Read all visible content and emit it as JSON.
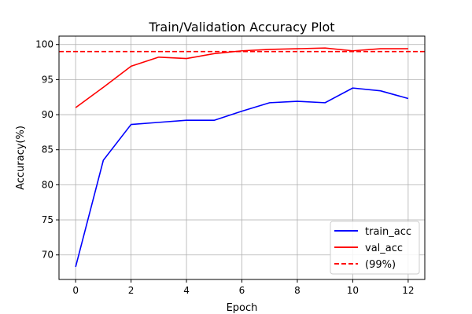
{
  "chart_data": {
    "type": "line",
    "title": "Train/Validation Accuracy Plot",
    "xlabel": "Epoch",
    "ylabel": "Accuracy(%)",
    "xlim": [
      -0.6,
      12.6
    ],
    "ylim": [
      66.5,
      101.2
    ],
    "xticks": [
      0,
      2,
      4,
      6,
      8,
      10,
      12
    ],
    "yticks": [
      70,
      75,
      80,
      85,
      90,
      95,
      100
    ],
    "grid": true,
    "legend_position": "lower-right",
    "x": [
      0,
      1,
      2,
      3,
      4,
      5,
      6,
      7,
      8,
      9,
      10,
      11,
      12
    ],
    "series": [
      {
        "name": "train_acc",
        "color": "#0000ff",
        "style": "solid",
        "values": [
          68.3,
          83.5,
          88.6,
          88.9,
          89.2,
          89.2,
          90.5,
          91.7,
          91.9,
          91.7,
          93.8,
          93.4,
          92.3
        ]
      },
      {
        "name": "val_acc",
        "color": "#ff0000",
        "style": "solid",
        "values": [
          91.0,
          93.9,
          96.9,
          98.2,
          98.0,
          98.7,
          99.1,
          99.3,
          99.4,
          99.5,
          99.1,
          99.4,
          99.4
        ]
      }
    ],
    "reference_line": {
      "name": "(99%)",
      "value": 99,
      "color": "#ff0000",
      "style": "dashed"
    }
  }
}
